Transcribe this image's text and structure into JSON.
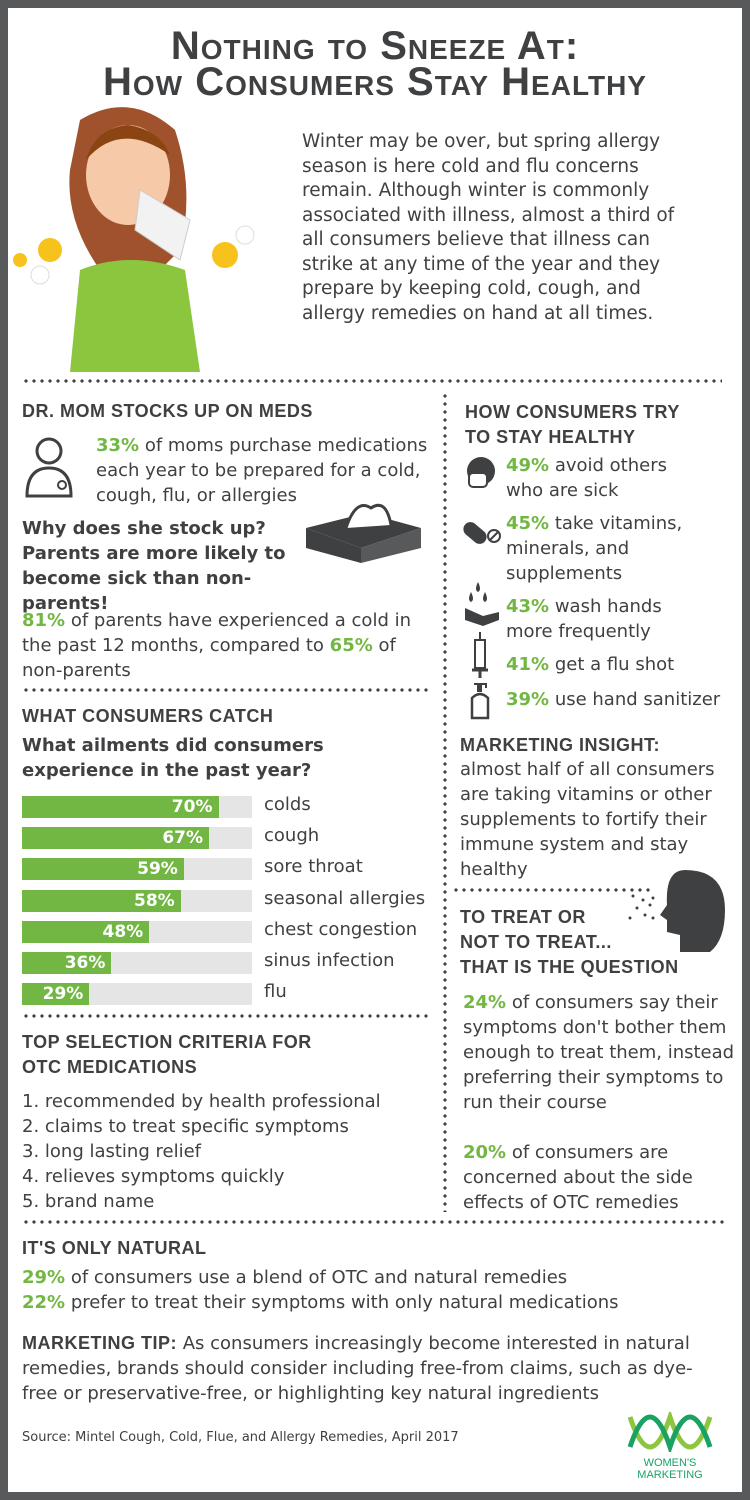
{
  "title": [
    "Nothing to Sneeze At:",
    "How Consumers Stay Healthy"
  ],
  "intro": "Winter may be over, but spring allergy season is here cold and flu concerns remain. Although winter is commonly associated with illness, almost a third of all consumers believe that illness can strike at any time of the year and they prepare by keeping cold, cough, and allergy remedies on hand at all times.",
  "drmom": {
    "heading": "DR. MOM STOCKS UP ON MEDS",
    "stat_pct": "33%",
    "stat_text": " of moms purchase medications each year to be prepared for a cold, cough, flu, or allergies",
    "question": "Why does she stock up? Parents are more likely to become sick than non-parents!",
    "p_pct1": "81%",
    "p_text1": " of parents have experienced a cold in the past 12 months, compared to ",
    "p_pct2": "65%",
    "p_text2": " of non-parents"
  },
  "catch": {
    "heading": "WHAT CONSUMERS CATCH",
    "question": "What ailments did consumers experience in the past year?"
  },
  "chart_data": {
    "type": "bar",
    "orientation": "horizontal",
    "categories": [
      "colds",
      "cough",
      "sore throat",
      "seasonal allergies",
      "chest congestion",
      "sinus infection",
      "flu"
    ],
    "values": [
      70,
      67,
      59,
      58,
      48,
      36,
      29
    ],
    "labels": [
      "70%",
      "67%",
      "59%",
      "58%",
      "48%",
      "36%",
      "29%"
    ],
    "unit": "%",
    "bar_color": "#72b743",
    "track_color": "#e5e5e5"
  },
  "criteria": {
    "heading": [
      "TOP SELECTION CRITERIA FOR",
      "OTC MEDICATIONS"
    ],
    "items": [
      "1. recommended by health professional",
      "2. claims to treat specific symptoms",
      "3. long lasting relief",
      "4. relieves symptoms quickly",
      "5. brand name"
    ]
  },
  "healthy": {
    "heading": [
      "HOW CONSUMERS TRY",
      "TO STAY HEALTHY"
    ],
    "items": [
      {
        "pct": "49%",
        "text": " avoid others who are sick",
        "icon": "face-mask-icon"
      },
      {
        "pct": "45%",
        "text": " take vitamins, minerals, and supplements",
        "icon": "pill-icon"
      },
      {
        "pct": "43%",
        "text": " wash hands more frequently",
        "icon": "hand-wash-icon"
      },
      {
        "pct": "41%",
        "text": " get a flu shot",
        "icon": "syringe-icon"
      },
      {
        "pct": "39%",
        "text": " use hand sanitizer",
        "icon": "sanitizer-icon"
      }
    ]
  },
  "insight": {
    "heading": "MARKETING INSIGHT:",
    "text": "almost half of all consumers are taking vitamins or other supplements to fortify their immune system and stay healthy"
  },
  "treat": {
    "heading": [
      "TO TREAT OR",
      "NOT TO TREAT...",
      "THAT IS THE QUESTION"
    ],
    "p1_pct": "24%",
    "p1_text": " of consumers say their symptoms don't bother them enough to treat them, instead preferring their symptoms to run their course",
    "p2_pct": "20%",
    "p2_text": " of consumers are concerned about the side effects of OTC remedies"
  },
  "natural": {
    "heading": "IT'S ONLY NATURAL",
    "l1_pct": "29%",
    "l1_text": " of consumers use a blend of OTC and natural remedies",
    "l2_pct": "22%",
    "l2_text": " prefer to treat their symptoms with only natural medications",
    "tip_label": "MARKETING TIP:",
    "tip_text": " As consumers increasingly become interested in natural remedies, brands should consider including free-from claims, such as dye-free or preservative-free, or highlighting key natural ingredients"
  },
  "source": "Source: Mintel Cough, Cold, Flue, and Allergy Remedies, April 2017",
  "logo": "WOMEN'S MARKETING",
  "colors": {
    "accent": "#72b743",
    "text": "#3f4042",
    "frame": "#58595b"
  }
}
